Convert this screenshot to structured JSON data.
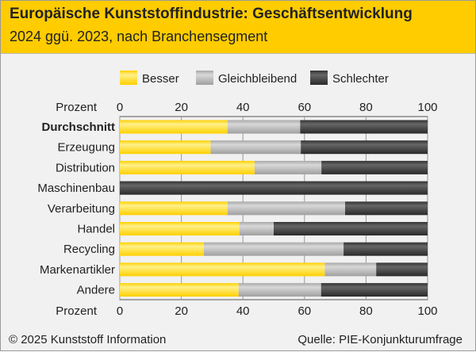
{
  "header": {
    "title": "Europäische Kunststoffindustrie: Geschäftsentwicklung",
    "subtitle": "2024 ggü. 2023, nach Branchensegment"
  },
  "footer": {
    "copyright": "© 2025 Kunststoff Information",
    "source": "Quelle: PIE-Konjunkturumfrage"
  },
  "chart_data": {
    "type": "bar",
    "orientation": "horizontal",
    "stacked": true,
    "title": "Europäische Kunststoffindustrie: Geschäftsentwicklung",
    "subtitle": "2024 ggü. 2023, nach Branchensegment",
    "xlabel": "Prozent",
    "xlim": [
      0,
      100
    ],
    "xticks": [
      0,
      20,
      40,
      60,
      80,
      100
    ],
    "grid": true,
    "legend_position": "top",
    "categories": [
      "Durchschnitt",
      "Erzeugung",
      "Distribution",
      "Maschinenbau",
      "Verarbeitung",
      "Handel",
      "Recycling",
      "Markenartikler",
      "Andere"
    ],
    "series": [
      {
        "name": "Besser",
        "color": "#ffd700",
        "values": [
          35.0,
          29.5,
          43.8,
          0,
          35.0,
          38.9,
          27.3,
          66.6,
          38.6
        ]
      },
      {
        "name": "Gleichbleibend",
        "color": "#bdbdbd",
        "values": [
          23.6,
          29.3,
          21.7,
          0,
          38.2,
          11.1,
          45.4,
          16.7,
          26.8
        ]
      },
      {
        "name": "Schlechter",
        "color": "#444444",
        "values": [
          41.4,
          41.2,
          34.5,
          100,
          26.8,
          50.0,
          27.3,
          16.7,
          34.6
        ]
      }
    ]
  }
}
